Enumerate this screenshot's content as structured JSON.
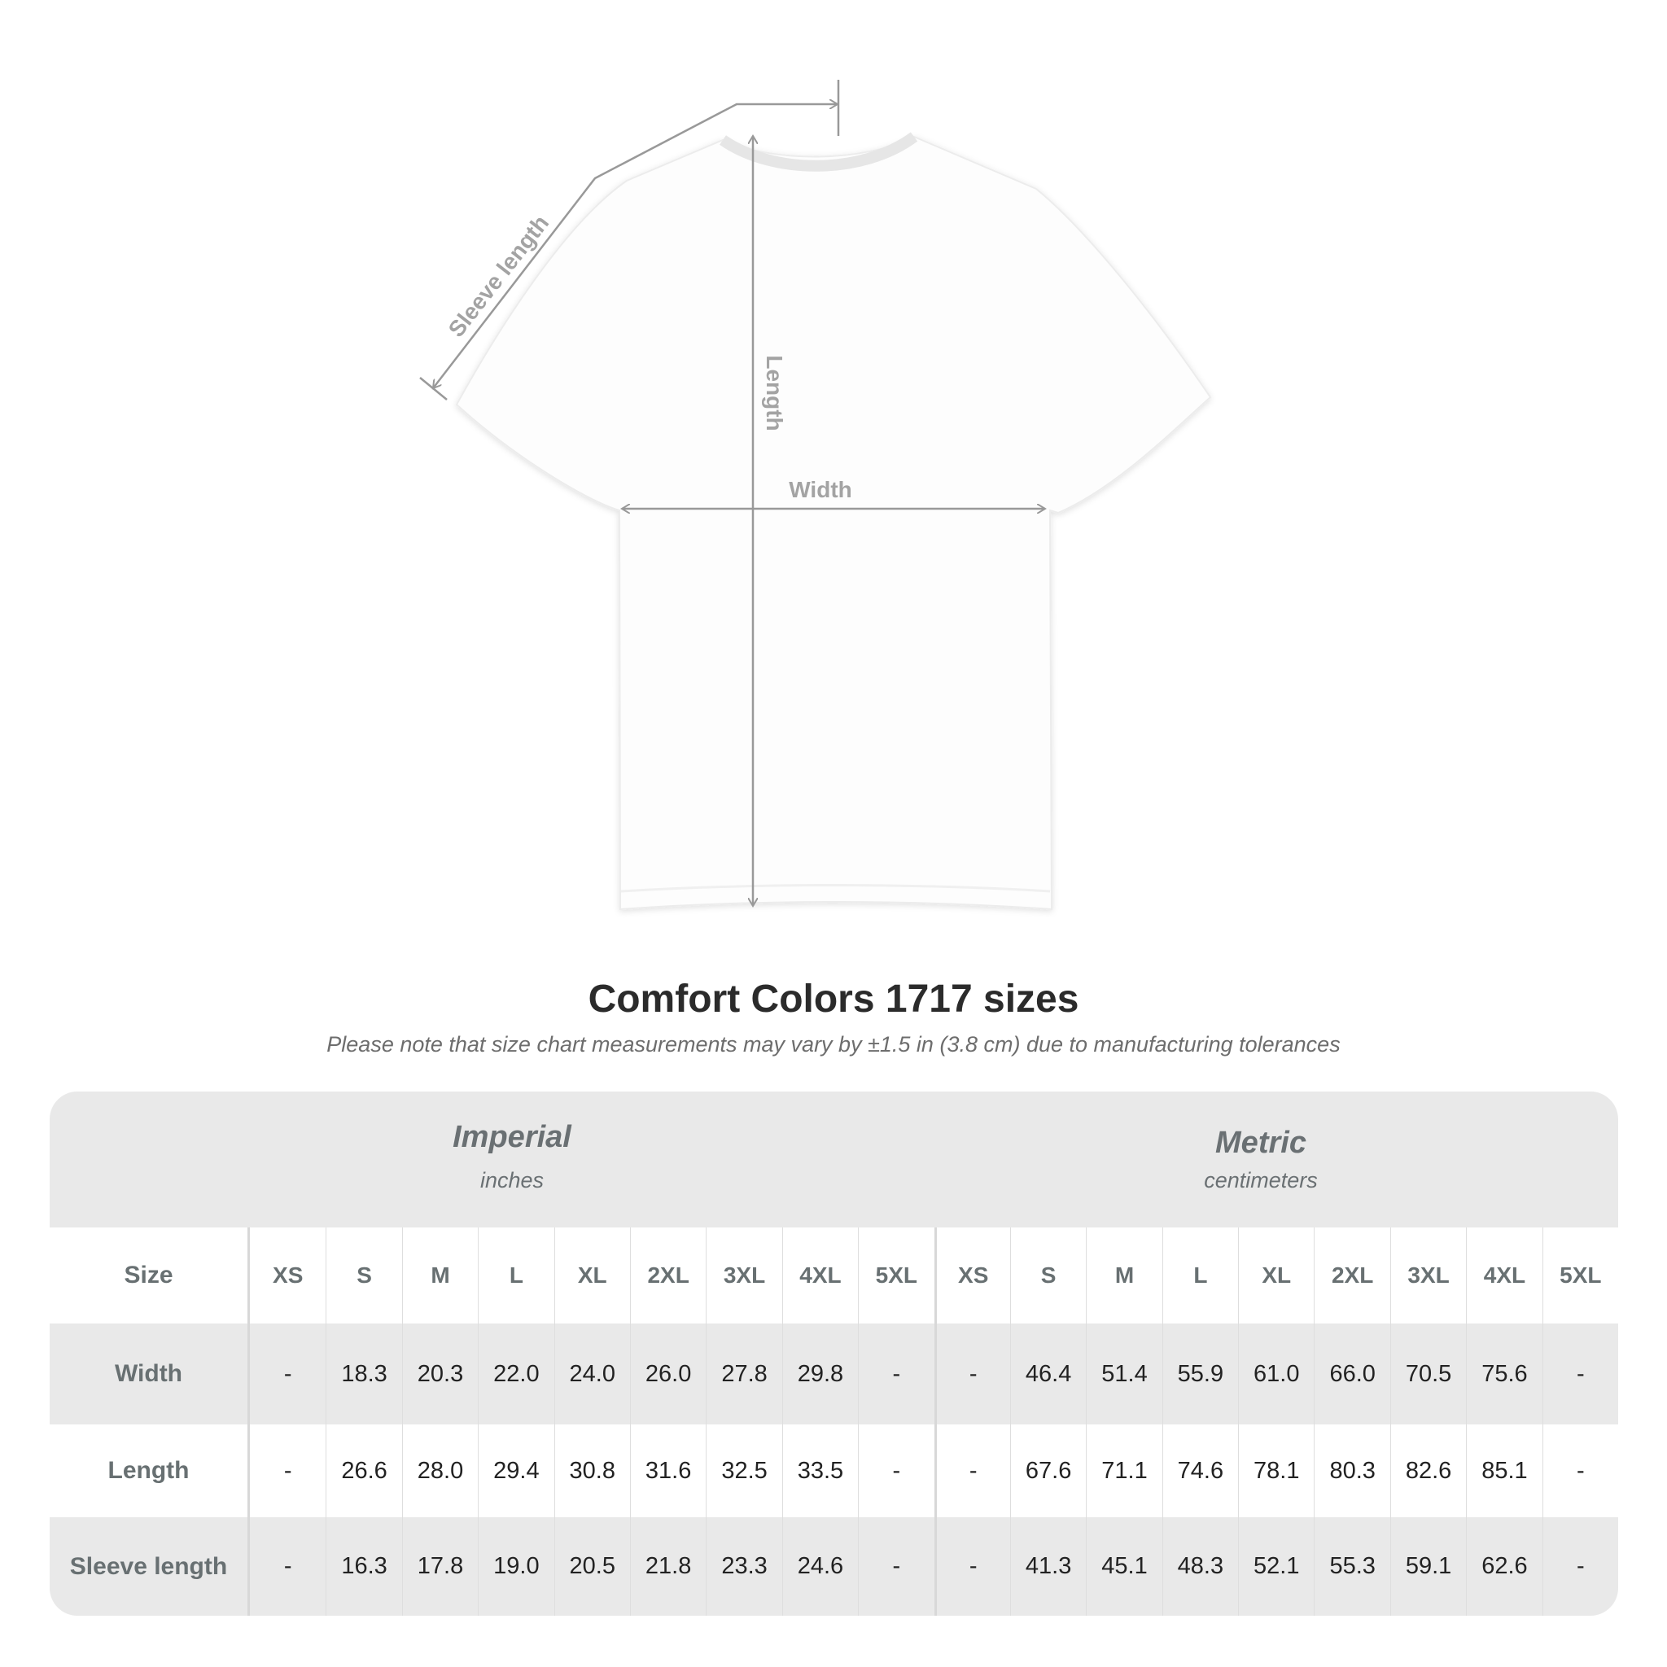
{
  "diagram": {
    "labels": {
      "sleeve": "Sleeve length",
      "length": "Length",
      "width": "Width"
    },
    "line_color": "#999999"
  },
  "title": "Comfort Colors 1717 sizes",
  "subtitle": "Please note that size chart measurements may vary by ±1.5 in (3.8 cm) due to manufacturing tolerances",
  "table": {
    "imperial": {
      "title": "Imperial",
      "unit": "inches"
    },
    "metric": {
      "title": "Metric",
      "unit": "centimeters"
    },
    "size_label": "Size",
    "sizes": [
      "XS",
      "S",
      "M",
      "L",
      "XL",
      "2XL",
      "3XL",
      "4XL",
      "5XL"
    ],
    "rows": [
      {
        "label": "Width",
        "imperial": [
          "-",
          "18.3",
          "20.3",
          "22.0",
          "24.0",
          "26.0",
          "27.8",
          "29.8",
          "-"
        ],
        "metric": [
          "-",
          "46.4",
          "51.4",
          "55.9",
          "61.0",
          "66.0",
          "70.5",
          "75.6",
          "-"
        ]
      },
      {
        "label": "Length",
        "imperial": [
          "-",
          "26.6",
          "28.0",
          "29.4",
          "30.8",
          "31.6",
          "32.5",
          "33.5",
          "-"
        ],
        "metric": [
          "-",
          "67.6",
          "71.1",
          "74.6",
          "78.1",
          "80.3",
          "82.6",
          "85.1",
          "-"
        ]
      },
      {
        "label": "Sleeve length",
        "imperial": [
          "-",
          "16.3",
          "17.8",
          "19.0",
          "20.5",
          "21.8",
          "23.3",
          "24.6",
          "-"
        ],
        "metric": [
          "-",
          "41.3",
          "45.1",
          "48.3",
          "52.1",
          "55.3",
          "59.1",
          "62.6",
          "-"
        ]
      }
    ],
    "colors": {
      "band": "#e9e9e9",
      "text_muted": "#687072"
    }
  }
}
